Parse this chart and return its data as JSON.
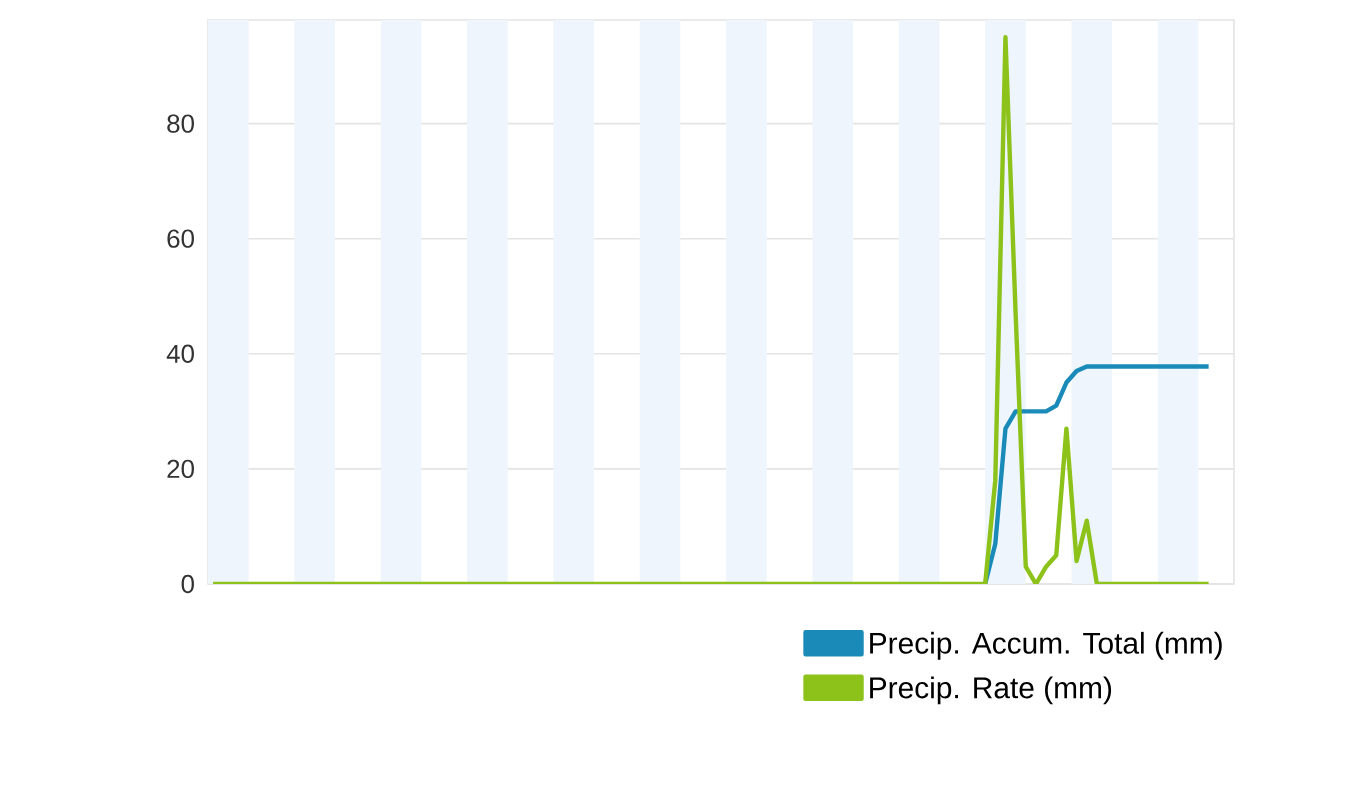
{
  "chart_data": {
    "type": "line",
    "categories": [
      null,
      null,
      null,
      null,
      null,
      null,
      null,
      null,
      null,
      null,
      null,
      null,
      null,
      null,
      null,
      null,
      null,
      null,
      null,
      null,
      null,
      null,
      null,
      null,
      null,
      null,
      null,
      null,
      null,
      null,
      null,
      null,
      null,
      null,
      null,
      null,
      null,
      null,
      null,
      null,
      null,
      null,
      null,
      null,
      null,
      null,
      null,
      null,
      null,
      null,
      null,
      null,
      null,
      null,
      null,
      null,
      null,
      null,
      null,
      null,
      null,
      null,
      null,
      null,
      null,
      null,
      null,
      null,
      null,
      null,
      null,
      null,
      null,
      null,
      null,
      null,
      null,
      null,
      null,
      null,
      null,
      null,
      null,
      null,
      null,
      null,
      null,
      null,
      null,
      null,
      null,
      null,
      null,
      null,
      null,
      null,
      null,
      null,
      null,
      null,
      null
    ],
    "series": [
      {
        "name": "Precip. Accum. Total (mm)",
        "color": "#1a8bb9",
        "values": [
          null,
          null,
          null,
          null,
          null,
          null,
          null,
          null,
          null,
          null,
          null,
          null,
          null,
          null,
          null,
          null,
          null,
          null,
          null,
          null,
          null,
          null,
          null,
          null,
          null,
          null,
          null,
          null,
          null,
          null,
          null,
          null,
          null,
          null,
          null,
          null,
          null,
          null,
          null,
          null,
          null,
          null,
          null,
          null,
          null,
          null,
          null,
          null,
          null,
          null,
          null,
          null,
          null,
          null,
          null,
          null,
          null,
          null,
          null,
          null,
          null,
          null,
          null,
          null,
          null,
          null,
          null,
          null,
          null,
          null,
          null,
          null,
          null,
          null,
          null,
          null,
          0,
          7,
          27,
          30,
          30,
          30,
          30,
          31,
          35,
          37,
          37.8,
          37.8,
          37.8,
          37.8,
          37.8,
          37.8,
          37.8,
          37.8,
          37.8,
          37.8,
          37.8,
          37.8,
          37.8,
          null,
          null
        ]
      },
      {
        "name": "Precip. Rate (mm)",
        "color": "#8cc21a",
        "values": [
          0,
          0,
          0,
          0,
          0,
          0,
          0,
          0,
          0,
          0,
          0,
          0,
          0,
          0,
          0,
          0,
          0,
          0,
          0,
          0,
          0,
          0,
          0,
          0,
          0,
          0,
          0,
          0,
          0,
          0,
          0,
          0,
          0,
          0,
          0,
          0,
          0,
          0,
          0,
          0,
          0,
          0,
          0,
          0,
          0,
          0,
          0,
          0,
          0,
          0,
          0,
          0,
          0,
          0,
          0,
          0,
          0,
          0,
          0,
          0,
          0,
          0,
          0,
          0,
          0,
          0,
          0,
          0,
          0,
          0,
          0,
          0,
          0,
          0,
          0,
          0,
          0,
          18,
          95,
          47,
          3,
          0,
          3,
          5,
          27,
          4,
          11,
          0,
          0,
          0,
          0,
          0,
          0,
          0,
          0,
          0,
          0,
          0,
          0,
          null,
          null
        ]
      }
    ],
    "ylim": [
      0,
      98
    ],
    "yticks": [
      0,
      20,
      40,
      60,
      80
    ],
    "grid": "y",
    "legend": "bottom right",
    "tick_labels": "y",
    "marker": "none",
    "line_style": "solid"
  }
}
